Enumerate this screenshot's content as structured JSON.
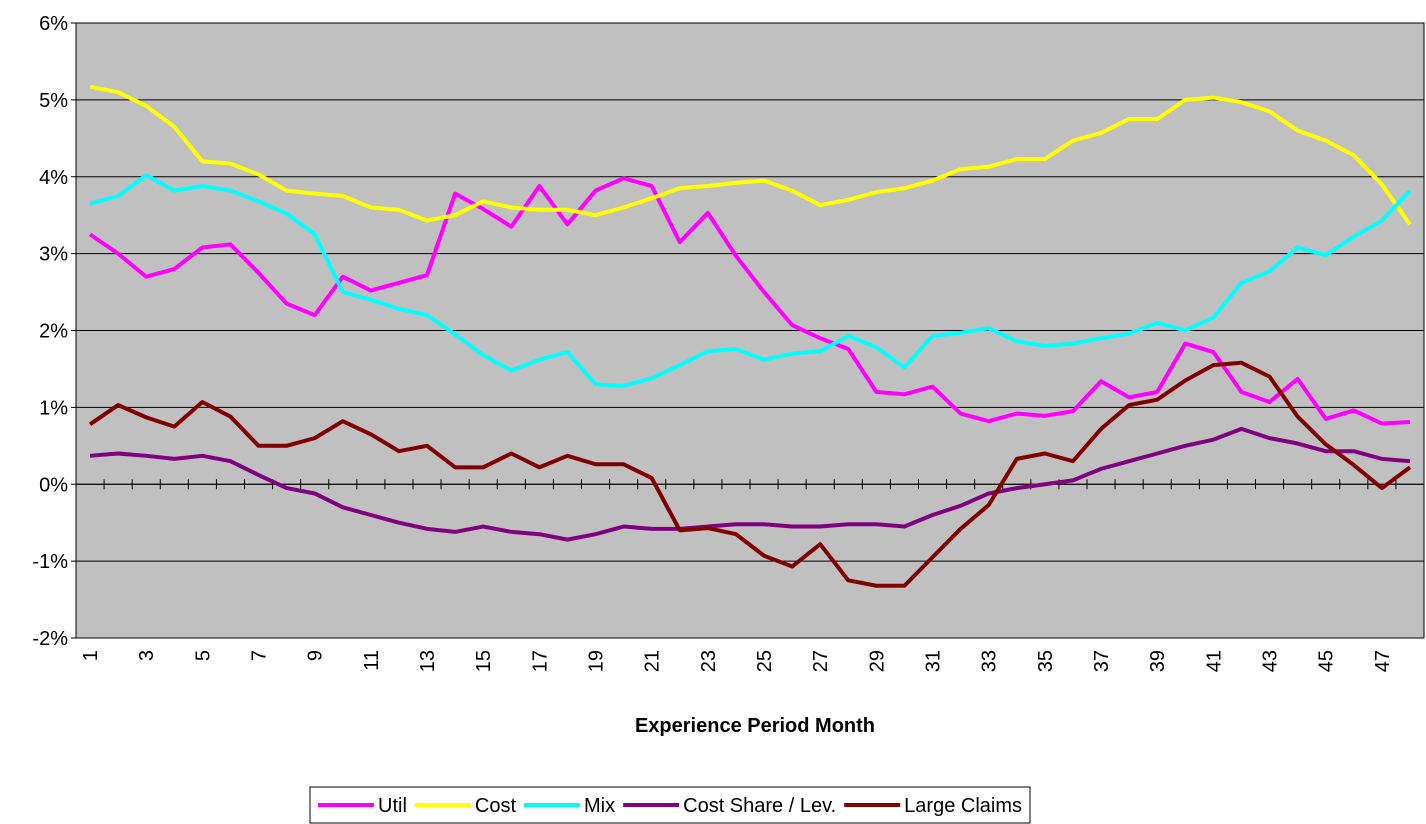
{
  "chart_data": {
    "type": "line",
    "xlabel": "Experience Period Month",
    "categories": [
      1,
      null,
      3,
      null,
      5,
      null,
      7,
      null,
      9,
      null,
      11,
      null,
      13,
      null,
      15,
      null,
      17,
      null,
      19,
      null,
      21,
      null,
      23,
      null,
      25,
      null,
      27,
      null,
      29,
      null,
      31,
      null,
      33,
      null,
      35,
      null,
      37,
      null,
      39,
      null,
      41,
      null,
      43,
      null,
      45,
      null,
      47,
      null
    ],
    "ylim": [
      -2,
      6
    ],
    "yticks": [
      {
        "value": -2,
        "label": "-2%"
      },
      {
        "value": -1,
        "label": "-1%"
      },
      {
        "value": 0,
        "label": "0%"
      },
      {
        "value": 1,
        "label": "1%"
      },
      {
        "value": 2,
        "label": "2%"
      },
      {
        "value": 3,
        "label": "3%"
      },
      {
        "value": 4,
        "label": "4%"
      },
      {
        "value": 5,
        "label": "5%"
      },
      {
        "value": 6,
        "label": "6%"
      }
    ],
    "grid": true,
    "legend": "bottom",
    "series": [
      {
        "name": "Util",
        "color": "#ff00ff",
        "values": [
          3.25,
          3.0,
          2.7,
          2.8,
          3.08,
          3.12,
          2.75,
          2.35,
          2.2,
          2.7,
          2.52,
          2.62,
          2.72,
          3.78,
          3.58,
          3.35,
          3.88,
          3.38,
          3.82,
          3.98,
          3.88,
          3.15,
          3.53,
          2.97,
          2.5,
          2.07,
          1.9,
          1.76,
          1.2,
          1.17,
          1.27,
          0.92,
          0.82,
          0.92,
          0.89,
          0.95,
          1.34,
          1.13,
          1.2,
          1.83,
          1.72,
          1.2,
          1.07,
          1.37,
          0.85,
          0.96,
          0.79,
          0.81
        ]
      },
      {
        "name": "Cost",
        "color": "#ffff00",
        "values": [
          5.17,
          5.1,
          4.92,
          4.65,
          4.2,
          4.17,
          4.03,
          3.82,
          3.78,
          3.75,
          3.6,
          3.57,
          3.43,
          3.5,
          3.68,
          3.6,
          3.57,
          3.57,
          3.5,
          3.6,
          3.72,
          3.85,
          3.88,
          3.92,
          3.95,
          3.82,
          3.63,
          3.7,
          3.8,
          3.85,
          3.95,
          4.1,
          4.13,
          4.23,
          4.23,
          4.47,
          4.57,
          4.75,
          4.75,
          5.0,
          5.03,
          4.97,
          4.85,
          4.6,
          4.47,
          4.28,
          3.9,
          3.38
        ]
      },
      {
        "name": "Mix",
        "color": "#00ffff",
        "values": [
          3.65,
          3.75,
          4.02,
          3.82,
          3.88,
          3.82,
          3.68,
          3.52,
          3.25,
          2.5,
          2.4,
          2.28,
          2.2,
          1.95,
          1.68,
          1.48,
          1.62,
          1.72,
          1.3,
          1.28,
          1.38,
          1.55,
          1.73,
          1.76,
          1.62,
          1.7,
          1.73,
          1.93,
          1.78,
          1.52,
          1.93,
          1.97,
          2.03,
          1.86,
          1.8,
          1.83,
          1.9,
          1.96,
          2.1,
          2.0,
          2.17,
          2.62,
          2.77,
          3.08,
          2.98,
          3.22,
          3.43,
          3.82
        ]
      },
      {
        "name": "Cost Share / Lev.",
        "color": "#800080",
        "values": [
          0.37,
          0.4,
          0.37,
          0.33,
          0.37,
          0.3,
          0.12,
          -0.05,
          -0.12,
          -0.3,
          -0.4,
          -0.5,
          -0.58,
          -0.62,
          -0.55,
          -0.62,
          -0.65,
          -0.72,
          -0.65,
          -0.55,
          -0.58,
          -0.58,
          -0.55,
          -0.52,
          -0.52,
          -0.55,
          -0.55,
          -0.52,
          -0.52,
          -0.55,
          -0.4,
          -0.28,
          -0.12,
          -0.05,
          0,
          0.05,
          0.2,
          0.3,
          0.4,
          0.5,
          0.58,
          0.72,
          0.6,
          0.53,
          0.43,
          0.43,
          0.33,
          0.3
        ]
      },
      {
        "name": "Large Claims",
        "color": "#800000",
        "values": [
          0.78,
          1.03,
          0.87,
          0.75,
          1.07,
          0.88,
          0.5,
          0.5,
          0.6,
          0.82,
          0.65,
          0.43,
          0.5,
          0.22,
          0.22,
          0.4,
          0.22,
          0.37,
          0.26,
          0.26,
          0.08,
          -0.6,
          -0.57,
          -0.65,
          -0.93,
          -1.07,
          -0.78,
          -1.25,
          -1.32,
          -1.32,
          -0.95,
          -0.58,
          -0.27,
          0.33,
          0.4,
          0.3,
          0.72,
          1.03,
          1.1,
          1.35,
          1.55,
          1.58,
          1.4,
          0.88,
          0.52,
          0.25,
          -0.05,
          0.22
        ]
      }
    ]
  }
}
